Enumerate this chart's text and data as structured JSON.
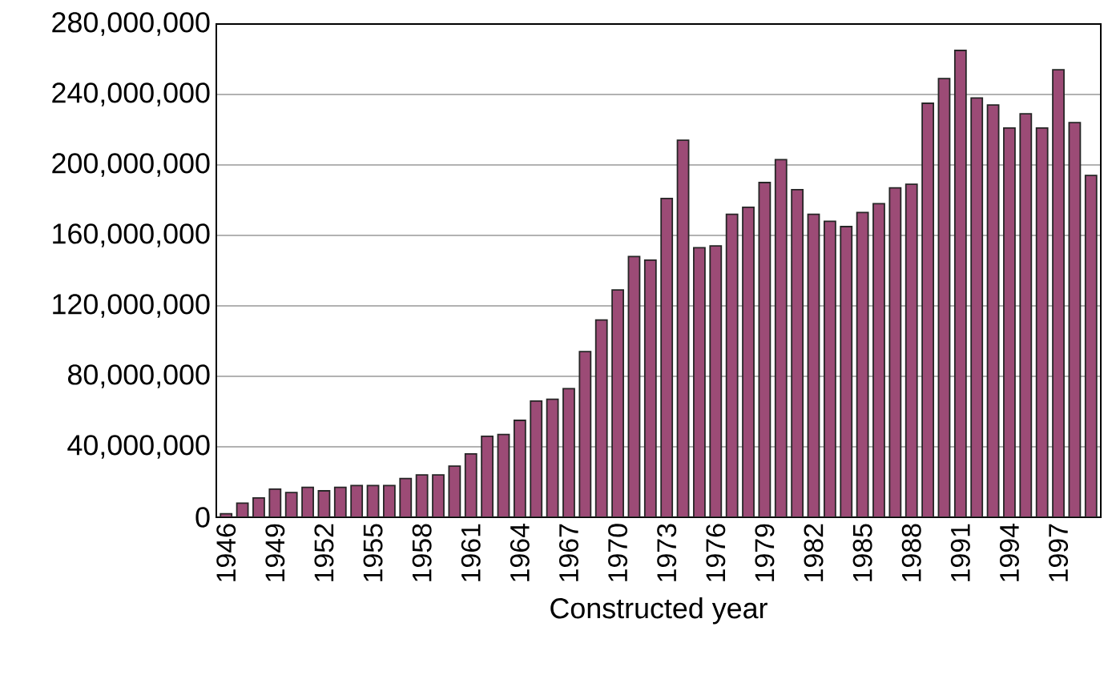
{
  "chart_data": {
    "type": "bar",
    "xlabel": "Constructed year",
    "categories": [
      "1946",
      null,
      null,
      "1949",
      null,
      null,
      "1952",
      null,
      null,
      "1955",
      null,
      null,
      "1958",
      null,
      null,
      "1961",
      null,
      null,
      "1964",
      null,
      null,
      "1967",
      null,
      null,
      "1970",
      null,
      null,
      "1973",
      null,
      null,
      "1976",
      null,
      null,
      "1979",
      null,
      null,
      "1982",
      null,
      null,
      "1985",
      null,
      null,
      "1988",
      null,
      null,
      "1991",
      null,
      null,
      "1994",
      null,
      null,
      "1997",
      null,
      null
    ],
    "values": [
      2000000,
      8000000,
      11000000,
      16000000,
      14000000,
      17000000,
      15000000,
      17000000,
      18000000,
      18000000,
      18000000,
      22000000,
      24000000,
      24000000,
      29000000,
      36000000,
      46000000,
      47000000,
      55000000,
      66000000,
      67000000,
      73000000,
      94000000,
      112000000,
      129000000,
      148000000,
      146000000,
      181000000,
      214000000,
      153000000,
      154000000,
      172000000,
      176000000,
      190000000,
      203000000,
      186000000,
      172000000,
      168000000,
      165000000,
      173000000,
      178000000,
      187000000,
      189000000,
      235000000,
      249000000,
      265000000,
      238000000,
      234000000,
      221000000,
      229000000,
      221000000,
      254000000,
      224000000,
      194000000
    ],
    "color": "#9c4b76",
    "ylim": [
      0,
      280000000
    ],
    "yticks": [
      {
        "value": 0,
        "label": "0"
      },
      {
        "value": 40000000,
        "label": "40,000,000"
      },
      {
        "value": 80000000,
        "label": "80,000,000"
      },
      {
        "value": 120000000,
        "label": "120,000,000"
      },
      {
        "value": 160000000,
        "label": "160,000,000"
      },
      {
        "value": 200000000,
        "label": "200,000,000"
      },
      {
        "value": 240000000,
        "label": "240,000,000"
      },
      {
        "value": 280000000,
        "label": "280,000,000"
      }
    ],
    "grid": "y"
  }
}
